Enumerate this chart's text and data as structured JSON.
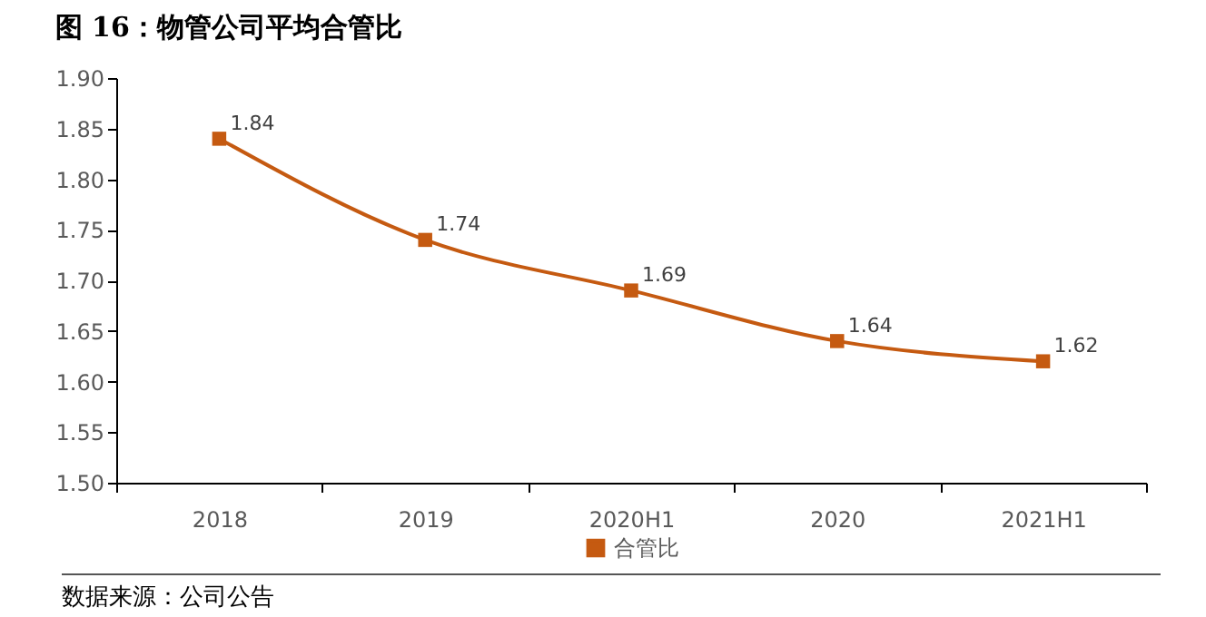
{
  "chart_data": {
    "type": "line",
    "title": "图 16：物管公司平均合管比",
    "annotations": [
      "数据来源：公司公告"
    ],
    "categories": [
      "2018",
      "2019",
      "2020H1",
      "2020",
      "2021H1"
    ],
    "series": [
      {
        "name": "合管比",
        "color": "#c55a11",
        "values": [
          1.84,
          1.74,
          1.69,
          1.64,
          1.62
        ]
      }
    ],
    "ylim": [
      1.5,
      1.9
    ],
    "yticks": [
      {
        "value": 1.5,
        "label": "1.50"
      },
      {
        "value": 1.55,
        "label": "1.55"
      },
      {
        "value": 1.6,
        "label": "1.60"
      },
      {
        "value": 1.65,
        "label": "1.65"
      },
      {
        "value": 1.7,
        "label": "1.70"
      },
      {
        "value": 1.75,
        "label": "1.75"
      },
      {
        "value": 1.8,
        "label": "1.80"
      },
      {
        "value": 1.85,
        "label": "1.85"
      },
      {
        "value": 1.9,
        "label": "1.90"
      }
    ],
    "grid": false,
    "legend": "bottom",
    "marker": "square",
    "data_labels": true
  }
}
